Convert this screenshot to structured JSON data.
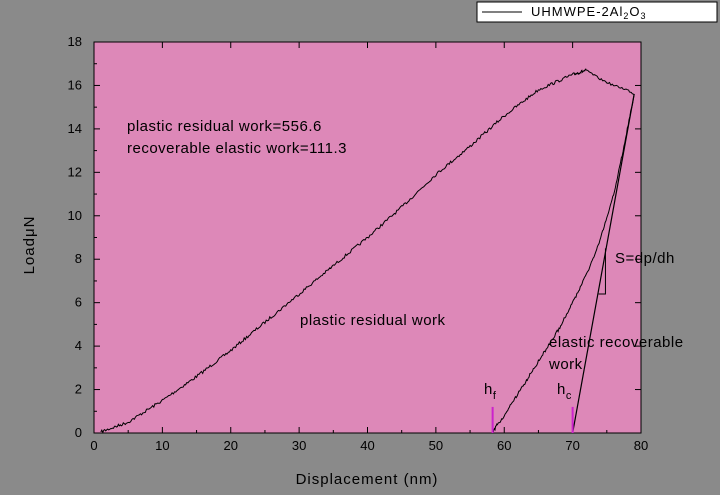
{
  "chart_data": {
    "type": "line",
    "xlabel": "Displacement (nm)",
    "ylabel": "LoadμN",
    "xlim": [
      0,
      80
    ],
    "ylim": [
      0,
      18
    ],
    "xticks": [
      0,
      10,
      20,
      30,
      40,
      50,
      60,
      70,
      80
    ],
    "yticks": [
      0,
      2,
      4,
      6,
      8,
      10,
      12,
      14,
      16,
      18
    ],
    "grid": false,
    "legend_position": "top-right",
    "colors": {
      "background": "#8a8a8a",
      "plot": "#dd88b8",
      "line": "#000000",
      "marker": "#cc22cc"
    },
    "series": [
      {
        "name": "UHMWPE-2Al2O3",
        "legend_parts": [
          {
            "text": "UHMWPE-2Al",
            "sub": false
          },
          {
            "text": "2",
            "sub": true
          },
          {
            "text": "O",
            "sub": false
          },
          {
            "text": "3",
            "sub": true
          }
        ],
        "loading": {
          "x": [
            1,
            5,
            10,
            15,
            20,
            25,
            30,
            35,
            40,
            45,
            50,
            55,
            60,
            65,
            70,
            72
          ],
          "y": [
            0.05,
            0.5,
            1.5,
            2.6,
            3.8,
            5.1,
            6.4,
            7.7,
            9.0,
            10.4,
            11.9,
            13.2,
            14.6,
            15.8,
            16.5,
            16.7
          ]
        },
        "hold": {
          "x": [
            72,
            74,
            76,
            78,
            79
          ],
          "y": [
            16.7,
            16.3,
            16.0,
            15.8,
            15.6
          ]
        },
        "unloading": {
          "x": [
            79,
            78,
            77,
            76,
            75,
            74,
            73,
            72,
            71,
            70,
            69,
            68,
            67,
            66,
            65,
            64,
            63,
            62,
            61,
            60,
            59,
            58.3
          ],
          "y": [
            15.6,
            14.0,
            12.4,
            11.0,
            9.9,
            8.9,
            8.0,
            7.3,
            6.6,
            6.0,
            5.4,
            4.8,
            4.3,
            3.8,
            3.3,
            2.8,
            2.3,
            1.8,
            1.3,
            0.8,
            0.4,
            0.0
          ]
        }
      }
    ],
    "tangent_line": {
      "x": [
        70,
        79
      ],
      "y": [
        0,
        15.6
      ]
    },
    "slope_triangle": {
      "x": [
        73.8,
        74.8
      ],
      "y": [
        6.4,
        8.5
      ]
    },
    "h_markers": {
      "hf": {
        "x": 58.3,
        "y_top": 1.2
      },
      "hc": {
        "x": 70,
        "y_top": 1.2
      }
    },
    "annotations": {
      "plastic_residual_work_value": "plastic residual work=556.6",
      "recoverable_elastic_work_value": "recoverable elastic work=111.3",
      "plastic_region_label": "plastic residual work",
      "elastic_region_line1": "elastic recoverable",
      "elastic_region_line2": "work",
      "stiffness": "S=dp/dh",
      "hf_main": "h",
      "hf_sub": "f",
      "hc_main": "h",
      "hc_sub": "c"
    }
  }
}
